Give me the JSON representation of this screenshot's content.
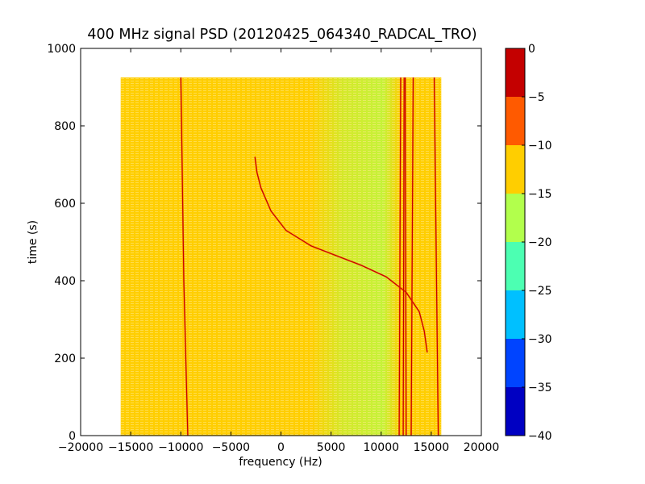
{
  "chart_data": {
    "type": "heatmap",
    "title": "400 MHz signal PSD (20120425_064340_RADCAL_TRO)",
    "xlabel": "frequency (Hz)",
    "ylabel": "time (s)",
    "xlim": [
      -20000,
      20000
    ],
    "ylim": [
      0,
      1000
    ],
    "xticks": [
      -20000,
      -15000,
      -10000,
      -5000,
      0,
      5000,
      10000,
      15000,
      20000
    ],
    "xtick_labels": [
      "−20000",
      "−15000",
      "−10000",
      "−5000",
      "0",
      "5000",
      "10000",
      "15000",
      "20000"
    ],
    "yticks": [
      0,
      200,
      400,
      600,
      800,
      1000
    ],
    "ytick_labels": [
      "0",
      "200",
      "400",
      "600",
      "800",
      "1000"
    ],
    "data_extent": {
      "x": [
        -16000,
        16000
      ],
      "y": [
        0,
        925
      ]
    },
    "background_level": "-15 to -10",
    "low_region": {
      "level": "-20 to -15",
      "x_range": [
        3000,
        12000
      ]
    },
    "colorbar": {
      "levels": [
        -40,
        -35,
        -30,
        -25,
        -20,
        -15,
        -10,
        -5,
        0
      ],
      "tick_labels": [
        "−40",
        "−35",
        "−30",
        "−25",
        "−20",
        "−15",
        "−10",
        "−5",
        "0"
      ],
      "colors": [
        "#0000c2",
        "#0044ff",
        "#00c0ff",
        "#4cffb2",
        "#b2ff4c",
        "#ffce00",
        "#ff5a00",
        "#c40000"
      ]
    },
    "features": [
      {
        "name": "doppler-trace",
        "level": "-5 to 0",
        "points": [
          [
            -2600,
            720
          ],
          [
            -2400,
            680
          ],
          [
            -2000,
            640
          ],
          [
            -1000,
            580
          ],
          [
            500,
            530
          ],
          [
            3000,
            490
          ],
          [
            5500,
            465
          ],
          [
            8000,
            440
          ],
          [
            10500,
            410
          ],
          [
            12500,
            370
          ],
          [
            13800,
            320
          ],
          [
            14300,
            270
          ],
          [
            14600,
            215
          ]
        ]
      },
      {
        "name": "vertical-line-1",
        "level": "-5 to 0",
        "points": [
          [
            -9300,
            0
          ],
          [
            -9700,
            400
          ],
          [
            -10000,
            925
          ]
        ]
      },
      {
        "name": "vertical-line-2",
        "level": "-5 to 0",
        "points": [
          [
            11800,
            0
          ],
          [
            11950,
            925
          ]
        ]
      },
      {
        "name": "vertical-line-3",
        "level": "-5 to 0",
        "points": [
          [
            12200,
            0
          ],
          [
            12300,
            925
          ]
        ]
      },
      {
        "name": "vertical-line-4",
        "level": "-5 to 0",
        "points": [
          [
            12500,
            0
          ],
          [
            12400,
            925
          ]
        ]
      },
      {
        "name": "vertical-line-5",
        "level": "-5 to 0",
        "points": [
          [
            13000,
            0
          ],
          [
            13200,
            925
          ]
        ]
      },
      {
        "name": "vertical-line-6",
        "level": "-5 to 0",
        "points": [
          [
            15700,
            0
          ],
          [
            15300,
            925
          ]
        ]
      }
    ]
  }
}
